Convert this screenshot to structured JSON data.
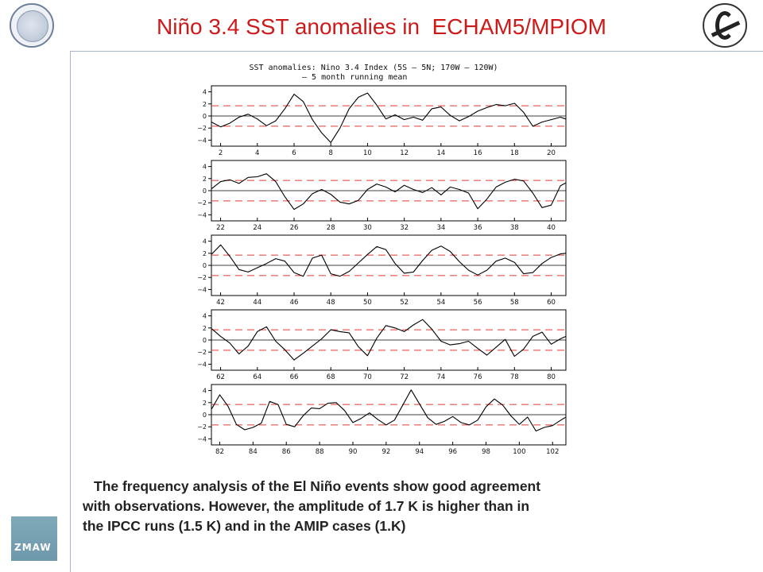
{
  "slide": {
    "title": "Niño 3.4 SST anomalies in  ECHAM5/MPIOM",
    "caption_line1": "The frequency analysis of the El Niño events show good agreement",
    "caption_line2": "with observations. However, the amplitude of 1.7 K is higher than in",
    "caption_line3": "the IPCC runs (1.5 K) and in the AMIP cases (1.K)",
    "zmaw_logo_text": "ZMAW",
    "icons": [
      "max-planck-logo-icon",
      "institute-logo-icon",
      "zmaw-logo-icon"
    ]
  },
  "chart_data": {
    "type": "line",
    "title": "SST anomalies: Nino 3.4 Index (5S – 5N; 170W – 120W)",
    "subtitle": "– 5 month running mean",
    "ylim": [
      -5,
      5
    ],
    "yticks": [
      -4,
      -2,
      0,
      2,
      4
    ],
    "reference_lines": [
      1.7,
      -1.7
    ],
    "colors": {
      "series": "#000000",
      "reference": "#e03a3a",
      "zero": "#000000"
    },
    "panels": [
      {
        "xlim": [
          1.5,
          20.8
        ],
        "xticks": [
          2,
          4,
          6,
          8,
          10,
          12,
          14,
          16,
          18,
          20
        ],
        "x": [
          1.5,
          2.0,
          2.5,
          3.0,
          3.5,
          4.0,
          4.5,
          5.0,
          5.5,
          6.0,
          6.5,
          7.0,
          7.5,
          8.0,
          8.5,
          9.0,
          9.5,
          10.0,
          10.5,
          11.0,
          11.5,
          12.0,
          12.5,
          13.0,
          13.5,
          14.0,
          14.5,
          15.0,
          15.5,
          16.0,
          16.5,
          17.0,
          17.5,
          18.0,
          18.5,
          19.0,
          19.5,
          20.0,
          20.5,
          20.8
        ],
        "y": [
          -1.0,
          -1.8,
          -1.2,
          -0.2,
          0.3,
          -0.5,
          -1.6,
          -0.8,
          1.2,
          3.6,
          2.4,
          -0.6,
          -2.8,
          -4.4,
          -2.0,
          1.2,
          3.1,
          3.8,
          1.8,
          -0.5,
          0.2,
          -0.6,
          -0.2,
          -0.7,
          1.2,
          1.5,
          0.1,
          -0.8,
          -0.1,
          0.8,
          1.4,
          1.9,
          1.7,
          2.1,
          0.6,
          -1.7,
          -1.0,
          -0.6,
          -0.2,
          -0.5
        ]
      },
      {
        "xlim": [
          21.5,
          40.8
        ],
        "xticks": [
          22,
          24,
          26,
          28,
          30,
          32,
          34,
          36,
          38,
          40
        ],
        "x": [
          21.5,
          22.0,
          22.5,
          23.0,
          23.5,
          24.0,
          24.5,
          25.0,
          25.5,
          26.0,
          26.5,
          27.0,
          27.5,
          28.0,
          28.5,
          29.0,
          29.5,
          30.0,
          30.5,
          31.0,
          31.5,
          32.0,
          32.5,
          33.0,
          33.5,
          34.0,
          34.5,
          35.0,
          35.5,
          36.0,
          36.5,
          37.0,
          37.5,
          38.0,
          38.5,
          39.0,
          39.5,
          40.0,
          40.5,
          40.8
        ],
        "y": [
          0.3,
          1.5,
          1.8,
          1.2,
          2.2,
          2.3,
          2.8,
          1.5,
          -1.0,
          -3.1,
          -2.2,
          -0.5,
          0.2,
          -0.6,
          -1.9,
          -2.2,
          -1.6,
          0.2,
          1.1,
          0.6,
          -0.2,
          0.9,
          0.2,
          -0.3,
          0.5,
          -0.7,
          0.6,
          0.2,
          -0.4,
          -3.0,
          -1.4,
          0.6,
          1.4,
          1.9,
          1.6,
          -0.4,
          -2.8,
          -2.4,
          0.8,
          1.3
        ]
      },
      {
        "xlim": [
          41.5,
          60.8
        ],
        "xticks": [
          42,
          44,
          46,
          48,
          50,
          52,
          54,
          56,
          58,
          60
        ],
        "x": [
          41.5,
          42.0,
          42.5,
          43.0,
          43.5,
          44.0,
          44.5,
          45.0,
          45.5,
          46.0,
          46.5,
          47.0,
          47.5,
          48.0,
          48.5,
          49.0,
          49.5,
          50.0,
          50.5,
          51.0,
          51.5,
          52.0,
          52.5,
          53.0,
          53.5,
          54.0,
          54.5,
          55.0,
          55.5,
          56.0,
          56.5,
          57.0,
          57.5,
          58.0,
          58.5,
          59.0,
          59.5,
          60.0,
          60.5,
          60.8
        ],
        "y": [
          1.8,
          3.4,
          1.5,
          -0.7,
          -1.1,
          -0.4,
          0.3,
          1.1,
          0.7,
          -1.2,
          -1.8,
          1.2,
          1.7,
          -1.4,
          -1.8,
          -1.0,
          0.4,
          1.8,
          3.1,
          2.6,
          0.3,
          -1.3,
          -1.1,
          0.8,
          2.5,
          3.2,
          2.3,
          0.6,
          -0.8,
          -1.6,
          -0.8,
          0.7,
          1.2,
          0.5,
          -1.4,
          -1.2,
          0.3,
          1.3,
          1.9,
          2.0
        ]
      },
      {
        "xlim": [
          61.5,
          80.8
        ],
        "xticks": [
          62,
          64,
          66,
          68,
          70,
          72,
          74,
          76,
          78,
          80
        ],
        "x": [
          61.5,
          62.0,
          62.5,
          63.0,
          63.5,
          64.0,
          64.5,
          65.0,
          65.5,
          66.0,
          66.5,
          67.0,
          67.5,
          68.0,
          68.5,
          69.0,
          69.5,
          70.0,
          70.5,
          71.0,
          71.5,
          72.0,
          72.5,
          73.0,
          73.5,
          74.0,
          74.5,
          75.0,
          75.5,
          76.0,
          76.5,
          77.0,
          77.5,
          78.0,
          78.5,
          79.0,
          79.5,
          80.0,
          80.5,
          80.8
        ],
        "y": [
          1.9,
          0.6,
          -0.5,
          -2.3,
          -1.0,
          1.4,
          2.2,
          -0.2,
          -1.6,
          -3.3,
          -2.2,
          -1.0,
          0.2,
          1.7,
          1.4,
          1.2,
          -1.1,
          -2.6,
          0.3,
          2.4,
          2.0,
          1.4,
          2.5,
          3.4,
          1.8,
          -0.2,
          -0.8,
          -0.6,
          -0.2,
          -1.4,
          -2.5,
          -1.2,
          0.1,
          -2.7,
          -1.5,
          0.6,
          1.3,
          -0.7,
          0.2,
          0.6
        ]
      },
      {
        "xlim": [
          81.5,
          102.8
        ],
        "xticks": [
          82,
          84,
          86,
          88,
          90,
          92,
          94,
          96,
          98,
          100,
          102
        ],
        "x": [
          81.5,
          82.0,
          82.5,
          83.0,
          83.5,
          84.0,
          84.5,
          85.0,
          85.5,
          86.0,
          86.5,
          87.0,
          87.5,
          88.0,
          88.5,
          89.0,
          89.5,
          90.0,
          90.5,
          91.0,
          91.5,
          92.0,
          92.5,
          93.0,
          93.5,
          94.0,
          94.5,
          95.0,
          95.5,
          96.0,
          96.5,
          97.0,
          97.5,
          98.0,
          98.5,
          99.0,
          99.5,
          100.0,
          100.5,
          101.0,
          101.5,
          102.0,
          102.5,
          102.8
        ],
        "y": [
          0.9,
          3.3,
          1.4,
          -1.6,
          -2.5,
          -2.1,
          -1.4,
          2.2,
          1.7,
          -1.6,
          -2.0,
          -0.2,
          1.1,
          1.0,
          1.9,
          2.0,
          0.7,
          -1.3,
          -0.6,
          0.3,
          -0.8,
          -1.7,
          -0.9,
          1.6,
          4.1,
          1.8,
          -0.5,
          -1.6,
          -1.1,
          -0.3,
          -1.3,
          -1.7,
          -0.9,
          1.3,
          2.6,
          1.6,
          -0.2,
          -1.6,
          -0.4,
          -2.7,
          -2.1,
          -1.8,
          -0.9,
          -0.4
        ]
      }
    ]
  }
}
